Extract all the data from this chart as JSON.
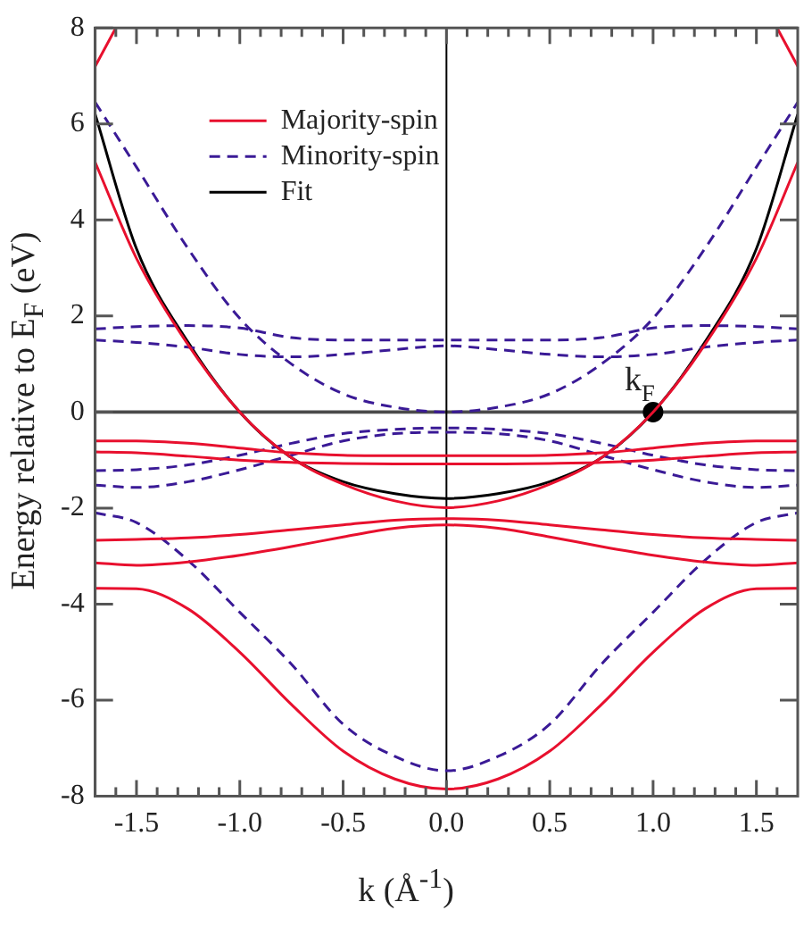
{
  "chart_data": {
    "type": "line",
    "xlabel": "k (Å$^{-1}$)",
    "ylabel": "Energy relative to E$_{F}$ (eV)",
    "x": [
      -1.7,
      -1.5,
      -1.25,
      -1.0,
      -0.75,
      -0.5,
      -0.25,
      0,
      0.25,
      0.5,
      0.75,
      1.0,
      1.25,
      1.5,
      1.7
    ],
    "xlim": [
      -1.7,
      1.7
    ],
    "ylim": [
      -8,
      8
    ],
    "xticks": [
      {
        "value": -1.6,
        "label": null
      },
      {
        "value": -1.5,
        "label": "-1.5"
      },
      {
        "value": -1.4,
        "label": null
      },
      {
        "value": -1.3,
        "label": null
      },
      {
        "value": -1.2,
        "label": null
      },
      {
        "value": -1.1,
        "label": null
      },
      {
        "value": -1.0,
        "label": "-1.0"
      },
      {
        "value": -0.9,
        "label": null
      },
      {
        "value": -0.8,
        "label": null
      },
      {
        "value": -0.7,
        "label": null
      },
      {
        "value": -0.6,
        "label": null
      },
      {
        "value": -0.5,
        "label": "-0.5"
      },
      {
        "value": -0.4,
        "label": null
      },
      {
        "value": -0.3,
        "label": null
      },
      {
        "value": -0.2,
        "label": null
      },
      {
        "value": -0.1,
        "label": null
      },
      {
        "value": 0,
        "label": "0.0"
      },
      {
        "value": 0.1,
        "label": null
      },
      {
        "value": 0.2,
        "label": null
      },
      {
        "value": 0.3,
        "label": null
      },
      {
        "value": 0.4,
        "label": null
      },
      {
        "value": 0.5,
        "label": "0.5"
      },
      {
        "value": 0.6,
        "label": null
      },
      {
        "value": 0.7,
        "label": null
      },
      {
        "value": 0.8,
        "label": null
      },
      {
        "value": 0.9,
        "label": null
      },
      {
        "value": 1.0,
        "label": "1.0"
      },
      {
        "value": 1.1,
        "label": null
      },
      {
        "value": 1.2,
        "label": null
      },
      {
        "value": 1.3,
        "label": null
      },
      {
        "value": 1.4,
        "label": null
      },
      {
        "value": 1.5,
        "label": "1.5"
      },
      {
        "value": 1.6,
        "label": null
      }
    ],
    "yticks": [
      -8,
      -6,
      -4,
      -2,
      0,
      2,
      4,
      6,
      8
    ],
    "legend": "top left",
    "grid": false,
    "series": [
      {
        "name": "Majority-spin",
        "color": "#e8102e",
        "line_style": "solid",
        "values": [
          -3.67,
          -3.68,
          -4.1,
          -5.0,
          -6.09,
          -7.06,
          -7.64,
          -7.85,
          -7.64,
          -7.06,
          -6.09,
          -5.0,
          -4.1,
          -3.68,
          -3.67
        ]
      },
      {
        "color": "#e8102e",
        "line_style": "solid",
        "values": [
          5.2,
          3.2,
          1.4,
          0.0,
          -0.95,
          -1.5,
          -1.85,
          -1.99,
          -1.85,
          -1.5,
          -0.95,
          0.0,
          1.4,
          3.2,
          5.2
        ]
      },
      {
        "color": "#e8102e",
        "line_style": "solid",
        "values": [
          -0.6,
          -0.6,
          -0.65,
          -0.75,
          -0.85,
          -0.9,
          -0.91,
          -0.91,
          -0.91,
          -0.9,
          -0.85,
          -0.75,
          -0.65,
          -0.6,
          -0.6
        ]
      },
      {
        "color": "#e8102e",
        "line_style": "solid",
        "values": [
          -0.83,
          -0.85,
          -0.92,
          -1.0,
          -1.05,
          -1.07,
          -1.08,
          -1.08,
          -1.08,
          -1.07,
          -1.05,
          -1.0,
          -0.92,
          -0.85,
          -0.83
        ]
      },
      {
        "color": "#e8102e",
        "line_style": "solid",
        "values": [
          -2.67,
          -2.65,
          -2.62,
          -2.55,
          -2.45,
          -2.35,
          -2.25,
          -2.22,
          -2.25,
          -2.35,
          -2.45,
          -2.55,
          -2.62,
          -2.65,
          -2.67
        ]
      },
      {
        "color": "#e8102e",
        "line_style": "solid",
        "values": [
          -3.14,
          -3.19,
          -3.12,
          -2.98,
          -2.8,
          -2.6,
          -2.42,
          -2.35,
          -2.42,
          -2.6,
          -2.8,
          -2.98,
          -3.12,
          -3.19,
          -3.14
        ]
      },
      {
        "color": "#e8102e",
        "line_style": "solid",
        "x": [
          -1.7,
          -1.6,
          0,
          1.6,
          1.7
        ],
        "values": [
          7.2,
          8.0,
          null,
          8.0,
          7.2
        ]
      },
      {
        "name": "Minority-spin",
        "color": "#3a1a96",
        "line_style": "dashed",
        "values": [
          -2.1,
          -2.3,
          -3.09,
          -4.17,
          -5.25,
          -6.5,
          -7.17,
          -7.47,
          -7.17,
          -6.5,
          -5.25,
          -4.17,
          -3.09,
          -2.3,
          -2.1
        ]
      },
      {
        "color": "#3a1a96",
        "line_style": "dashed",
        "values": [
          -1.22,
          -1.2,
          -1.1,
          -0.9,
          -0.65,
          -0.45,
          -0.36,
          -0.33,
          -0.36,
          -0.45,
          -0.65,
          -0.9,
          -1.1,
          -1.2,
          -1.22
        ]
      },
      {
        "color": "#3a1a96",
        "line_style": "dashed",
        "values": [
          -1.52,
          -1.57,
          -1.45,
          -1.2,
          -0.9,
          -0.6,
          -0.45,
          -0.42,
          -0.45,
          -0.6,
          -0.9,
          -1.2,
          -1.45,
          -1.57,
          -1.52
        ]
      },
      {
        "color": "#3a1a96",
        "line_style": "dashed",
        "values": [
          6.45,
          5.1,
          3.4,
          1.95,
          1.0,
          0.38,
          0.1,
          0.0,
          0.1,
          0.38,
          1.0,
          1.95,
          3.4,
          5.1,
          6.45
        ]
      },
      {
        "color": "#3a1a96",
        "line_style": "dashed",
        "values": [
          1.73,
          1.78,
          1.8,
          1.75,
          1.55,
          1.5,
          1.5,
          1.5,
          1.5,
          1.5,
          1.55,
          1.75,
          1.8,
          1.78,
          1.73
        ]
      },
      {
        "color": "#3a1a96",
        "line_style": "dashed",
        "values": [
          1.5,
          1.45,
          1.35,
          1.2,
          1.15,
          1.2,
          1.3,
          1.38,
          1.3,
          1.2,
          1.15,
          1.2,
          1.35,
          1.45,
          1.5
        ]
      },
      {
        "name": "Fit",
        "color": "#000000",
        "line_style": "solid",
        "values": [
          6.2,
          3.4,
          1.45,
          0.0,
          -0.95,
          -1.45,
          -1.7,
          -1.8,
          -1.7,
          -1.45,
          -0.95,
          0.0,
          1.45,
          3.4,
          6.2
        ]
      },
      {
        "type": "scatter",
        "color": "#000000",
        "marker": "circle",
        "x": [
          1.0
        ],
        "values": [
          0
        ]
      }
    ],
    "ref_lines": [
      {
        "axis": "y",
        "value": 0,
        "color": "#4a4a4a"
      },
      {
        "axis": "x",
        "value": 0,
        "color": "#000000"
      }
    ],
    "annotations": [
      {
        "text": "k$_{F}$",
        "x": 1.0,
        "y": 0
      }
    ]
  }
}
